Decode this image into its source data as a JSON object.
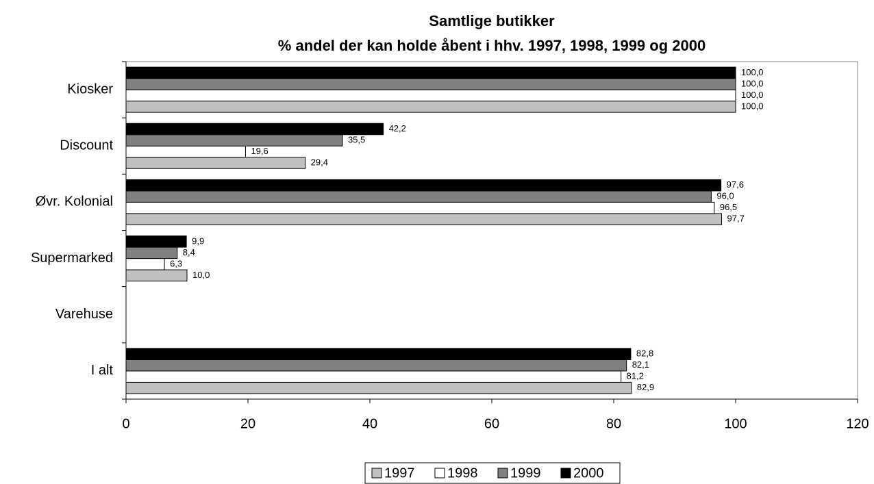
{
  "chart_data": {
    "type": "hbar",
    "title": "Samtlige butikker",
    "subtitle": "% andel der kan holde åbent i hhv. 1997, 1998, 1999 og 2000",
    "categories": [
      "Kiosker",
      "Discount",
      "Øvr. Kolonial",
      "Supermarked",
      "Varehuse",
      "I alt"
    ],
    "series": [
      {
        "name": "1997",
        "color": "#c0c0c0",
        "values": [
          100,
          29.4,
          97.7,
          10.0,
          null,
          82.9
        ],
        "value_labels": [
          "100,0",
          "29,4",
          "97,7",
          "10,0",
          null,
          "82,9"
        ]
      },
      {
        "name": "1998",
        "color": "#ffffff",
        "values": [
          100,
          19.6,
          96.5,
          6.3,
          null,
          81.2
        ],
        "value_labels": [
          "100,0",
          "19,6",
          "96,5",
          "6,3",
          null,
          "81,2"
        ]
      },
      {
        "name": "1999",
        "color": "#808080",
        "values": [
          100,
          35.5,
          96.0,
          8.4,
          null,
          82.1
        ],
        "value_labels": [
          "100,0",
          "35,5",
          "96,0",
          "8,4",
          null,
          "82,1"
        ]
      },
      {
        "name": "2000",
        "color": "#000000",
        "values": [
          100,
          42.2,
          97.6,
          9.9,
          null,
          82.8
        ],
        "value_labels": [
          "100,0",
          "42,2",
          "97,6",
          "9,9",
          null,
          "82,8"
        ]
      }
    ],
    "xlim": [
      0,
      120
    ],
    "xticks": [
      0,
      20,
      40,
      60,
      80,
      100,
      120
    ],
    "grid": false,
    "legend": "bottom"
  }
}
